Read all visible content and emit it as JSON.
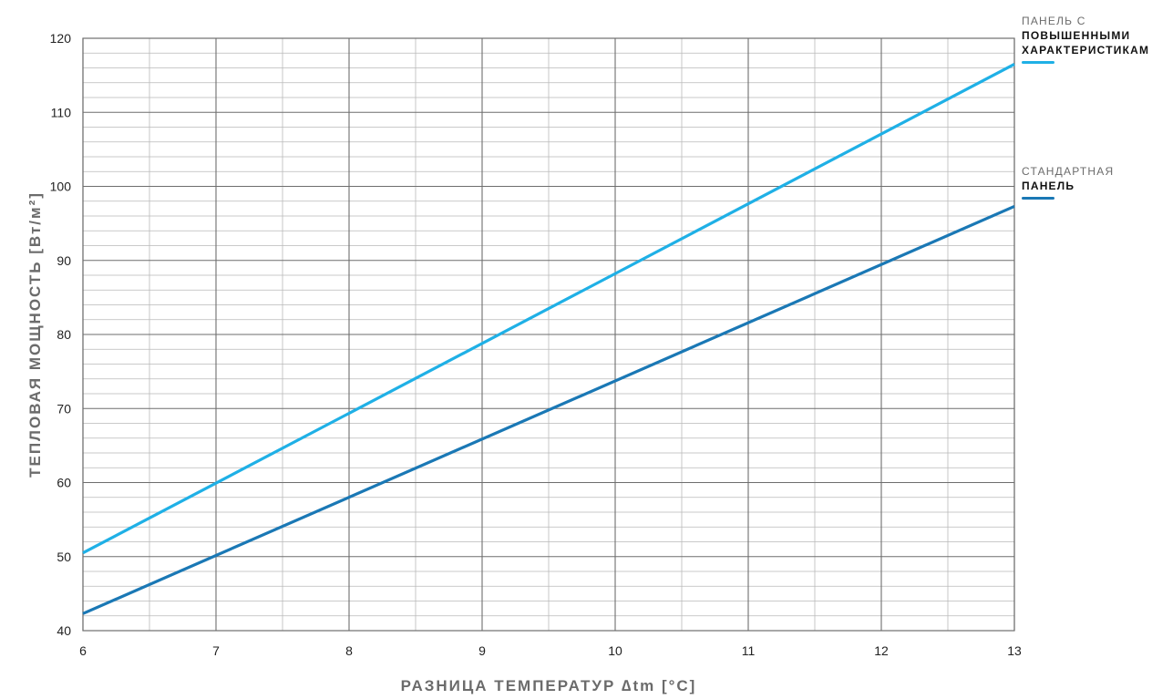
{
  "chart_data": {
    "type": "line",
    "xlabel": "РАЗНИЦА ТЕМПЕРАТУР ∆tm [°C]",
    "ylabel": "ТЕПЛОВАЯ МОЩНОСТЬ  [Вт/м²]",
    "xlim": [
      6,
      13
    ],
    "ylim": [
      40,
      120
    ],
    "x_ticks": [
      "6",
      "7",
      "8",
      "9",
      "10",
      "11",
      "12",
      "13"
    ],
    "y_ticks": [
      "40",
      "50",
      "60",
      "70",
      "80",
      "90",
      "100",
      "110",
      "120"
    ],
    "grid": true,
    "legend_position": "right",
    "series": [
      {
        "name": "ПАНЕЛЬ С ПОВЫШЕННЫМИ ХАРАКТЕРИСТИКАМИ",
        "legend_line1": "ПАНЕЛЬ С",
        "legend_line2": "ПОВЫШЕННЫМИ",
        "legend_line3": "ХАРАКТЕРИСТИКАМИ",
        "color": "#1fb0e6",
        "x": [
          6,
          13
        ],
        "y": [
          50.5,
          116.5
        ]
      },
      {
        "name": "СТАНДАРТНАЯ ПАНЕЛЬ",
        "legend_line1": "СТАНДАРТНАЯ",
        "legend_line2": "ПАНЕЛЬ",
        "color": "#1a78b5",
        "x": [
          6,
          13
        ],
        "y": [
          42.3,
          97.3
        ]
      }
    ]
  }
}
